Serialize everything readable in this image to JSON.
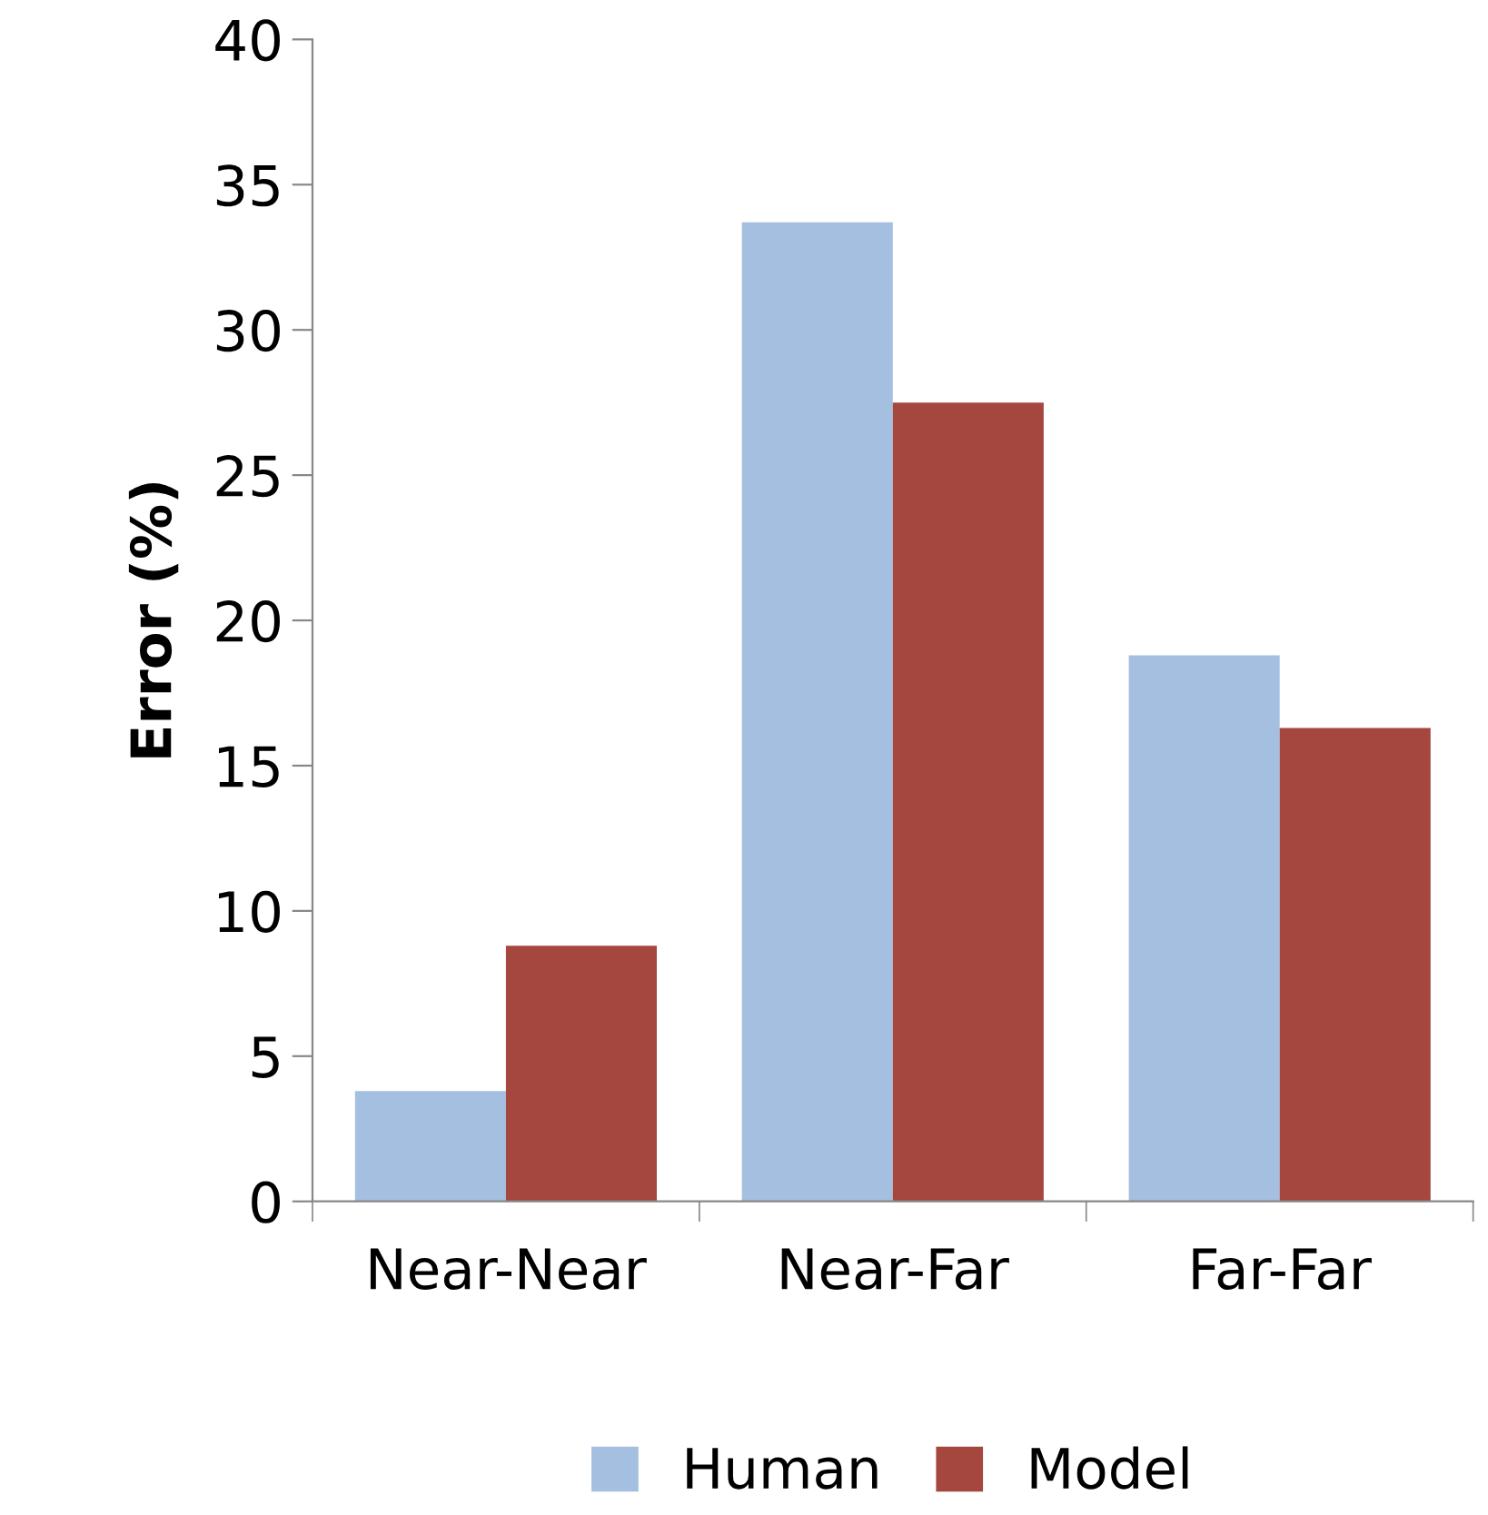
{
  "chart_data": {
    "type": "bar",
    "ylabel": "Error (%)",
    "categories": [
      "Near-Near",
      "Near-Far",
      "Far-Far"
    ],
    "series": [
      {
        "name": "Human",
        "color": "#a4bfdf",
        "values": [
          3.8,
          33.7,
          18.8
        ]
      },
      {
        "name": "Model",
        "color": "#a5473e",
        "values": [
          8.8,
          27.5,
          16.3
        ]
      }
    ],
    "ylim": [
      0,
      40
    ],
    "yticks": [
      0,
      5,
      10,
      15,
      20,
      25,
      30,
      35,
      40
    ],
    "grid": false,
    "legend": "bottom"
  }
}
